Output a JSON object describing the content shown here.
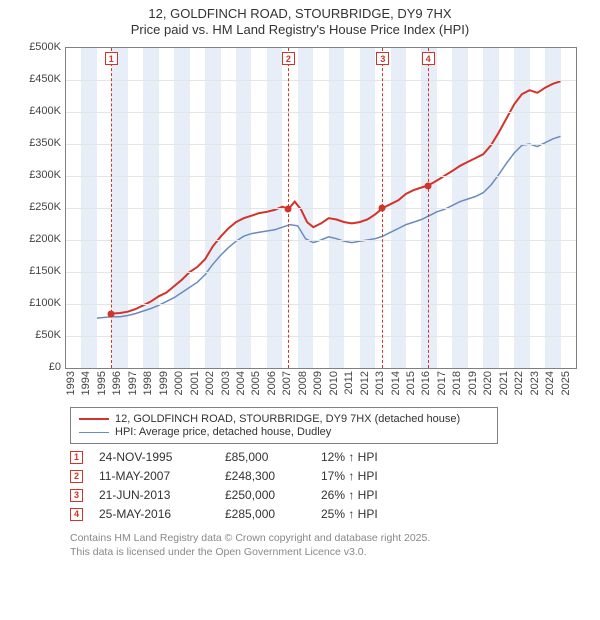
{
  "title_line1": "12, GOLDFINCH ROAD, STOURBRIDGE, DY9 7HX",
  "title_line2": "Price paid vs. HM Land Registry's House Price Index (HPI)",
  "chart": {
    "type": "line",
    "background_color": "#ffffff",
    "grid_color": "#e5e5e5",
    "axis_color": "#808080",
    "xlim": [
      1993,
      2026
    ],
    "ylim": [
      0,
      500000
    ],
    "ytick_step": 50000,
    "yticks": [
      "£0",
      "£50K",
      "£100K",
      "£150K",
      "£200K",
      "£250K",
      "£300K",
      "£350K",
      "£400K",
      "£450K",
      "£500K"
    ],
    "xticks": [
      1993,
      1994,
      1995,
      1996,
      1997,
      1998,
      1999,
      2000,
      2001,
      2002,
      2003,
      2004,
      2005,
      2006,
      2007,
      2008,
      2009,
      2010,
      2011,
      2012,
      2013,
      2014,
      2015,
      2016,
      2017,
      2018,
      2019,
      2020,
      2021,
      2022,
      2023,
      2024,
      2025
    ],
    "band_color": "#e8eef7",
    "band_years": [
      [
        1994,
        1995
      ],
      [
        1996,
        1997
      ],
      [
        1998,
        1999
      ],
      [
        2000,
        2001
      ],
      [
        2002,
        2003
      ],
      [
        2004,
        2005
      ],
      [
        2006,
        2007
      ],
      [
        2008,
        2009
      ],
      [
        2010,
        2011
      ],
      [
        2012,
        2013
      ],
      [
        2014,
        2015
      ],
      [
        2016,
        2017
      ],
      [
        2018,
        2019
      ],
      [
        2020,
        2021
      ],
      [
        2022,
        2023
      ],
      [
        2024,
        2025
      ]
    ],
    "label_fontsize": 11,
    "series": [
      {
        "name": "red",
        "label": "12, GOLDFINCH ROAD, STOURBRIDGE, DY9 7HX (detached house)",
        "color": "#d2342a",
        "line_width": 2,
        "points": [
          [
            1995.9,
            85000
          ],
          [
            1996.5,
            86000
          ],
          [
            1997,
            88000
          ],
          [
            1997.5,
            92000
          ],
          [
            1998,
            98000
          ],
          [
            1998.5,
            104000
          ],
          [
            1999,
            112000
          ],
          [
            1999.5,
            118000
          ],
          [
            2000,
            128000
          ],
          [
            2000.5,
            138000
          ],
          [
            2001,
            150000
          ],
          [
            2001.5,
            158000
          ],
          [
            2002,
            170000
          ],
          [
            2002.5,
            190000
          ],
          [
            2003,
            205000
          ],
          [
            2003.5,
            218000
          ],
          [
            2004,
            228000
          ],
          [
            2004.5,
            234000
          ],
          [
            2005,
            238000
          ],
          [
            2005.5,
            242000
          ],
          [
            2006,
            244000
          ],
          [
            2006.5,
            247000
          ],
          [
            2007,
            252000
          ],
          [
            2007.4,
            248300
          ],
          [
            2007.8,
            260000
          ],
          [
            2008.2,
            248000
          ],
          [
            2008.6,
            228000
          ],
          [
            2009,
            220000
          ],
          [
            2009.5,
            226000
          ],
          [
            2010,
            234000
          ],
          [
            2010.5,
            232000
          ],
          [
            2011,
            228000
          ],
          [
            2011.5,
            226000
          ],
          [
            2012,
            228000
          ],
          [
            2012.5,
            232000
          ],
          [
            2013,
            240000
          ],
          [
            2013.5,
            250000
          ],
          [
            2014,
            256000
          ],
          [
            2014.5,
            262000
          ],
          [
            2015,
            272000
          ],
          [
            2015.5,
            278000
          ],
          [
            2016,
            282000
          ],
          [
            2016.4,
            285000
          ],
          [
            2016.8,
            290000
          ],
          [
            2017.2,
            296000
          ],
          [
            2017.6,
            302000
          ],
          [
            2018,
            308000
          ],
          [
            2018.5,
            316000
          ],
          [
            2019,
            322000
          ],
          [
            2019.5,
            328000
          ],
          [
            2020,
            334000
          ],
          [
            2020.5,
            348000
          ],
          [
            2021,
            368000
          ],
          [
            2021.5,
            390000
          ],
          [
            2022,
            412000
          ],
          [
            2022.5,
            428000
          ],
          [
            2023,
            434000
          ],
          [
            2023.5,
            430000
          ],
          [
            2024,
            438000
          ],
          [
            2024.5,
            444000
          ],
          [
            2025,
            448000
          ]
        ]
      },
      {
        "name": "blue",
        "label": "HPI: Average price, detached house, Dudley",
        "color": "#6a8bc0",
        "line_width": 1.5,
        "points": [
          [
            1995,
            78000
          ],
          [
            1995.5,
            79000
          ],
          [
            1996,
            80000
          ],
          [
            1996.5,
            80000
          ],
          [
            1997,
            82000
          ],
          [
            1997.5,
            85000
          ],
          [
            1998,
            89000
          ],
          [
            1998.5,
            93000
          ],
          [
            1999,
            98000
          ],
          [
            1999.5,
            104000
          ],
          [
            2000,
            110000
          ],
          [
            2000.5,
            118000
          ],
          [
            2001,
            126000
          ],
          [
            2001.5,
            134000
          ],
          [
            2002,
            146000
          ],
          [
            2002.5,
            162000
          ],
          [
            2003,
            176000
          ],
          [
            2003.5,
            188000
          ],
          [
            2004,
            198000
          ],
          [
            2004.5,
            206000
          ],
          [
            2005,
            210000
          ],
          [
            2005.5,
            212000
          ],
          [
            2006,
            214000
          ],
          [
            2006.5,
            216000
          ],
          [
            2007,
            220000
          ],
          [
            2007.5,
            224000
          ],
          [
            2008,
            222000
          ],
          [
            2008.5,
            202000
          ],
          [
            2009,
            196000
          ],
          [
            2009.5,
            200000
          ],
          [
            2010,
            205000
          ],
          [
            2010.5,
            202000
          ],
          [
            2011,
            198000
          ],
          [
            2011.5,
            196000
          ],
          [
            2012,
            198000
          ],
          [
            2012.5,
            200000
          ],
          [
            2013,
            202000
          ],
          [
            2013.5,
            206000
          ],
          [
            2014,
            212000
          ],
          [
            2014.5,
            218000
          ],
          [
            2015,
            224000
          ],
          [
            2015.5,
            228000
          ],
          [
            2016,
            232000
          ],
          [
            2016.5,
            238000
          ],
          [
            2017,
            244000
          ],
          [
            2017.5,
            248000
          ],
          [
            2018,
            254000
          ],
          [
            2018.5,
            260000
          ],
          [
            2019,
            264000
          ],
          [
            2019.5,
            268000
          ],
          [
            2020,
            274000
          ],
          [
            2020.5,
            286000
          ],
          [
            2021,
            302000
          ],
          [
            2021.5,
            320000
          ],
          [
            2022,
            336000
          ],
          [
            2022.5,
            348000
          ],
          [
            2023,
            350000
          ],
          [
            2023.5,
            346000
          ],
          [
            2024,
            352000
          ],
          [
            2024.5,
            358000
          ],
          [
            2025,
            362000
          ]
        ]
      }
    ],
    "event_lines_color": "#d2342a",
    "events": [
      {
        "n": "1",
        "year": 1995.9,
        "value": 85000
      },
      {
        "n": "2",
        "year": 2007.36,
        "value": 248300
      },
      {
        "n": "3",
        "year": 2013.47,
        "value": 250000
      },
      {
        "n": "4",
        "year": 2016.4,
        "value": 285000
      }
    ]
  },
  "sales": [
    {
      "n": "1",
      "date": "24-NOV-1995",
      "price": "£85,000",
      "pct": "12% ↑ HPI"
    },
    {
      "n": "2",
      "date": "11-MAY-2007",
      "price": "£248,300",
      "pct": "17% ↑ HPI"
    },
    {
      "n": "3",
      "date": "21-JUN-2013",
      "price": "£250,000",
      "pct": "26% ↑ HPI"
    },
    {
      "n": "4",
      "date": "25-MAY-2016",
      "price": "£285,000",
      "pct": "25% ↑ HPI"
    }
  ],
  "footer_line1": "Contains HM Land Registry data © Crown copyright and database right 2025.",
  "footer_line2": "This data is licensed under the Open Government Licence v3.0."
}
